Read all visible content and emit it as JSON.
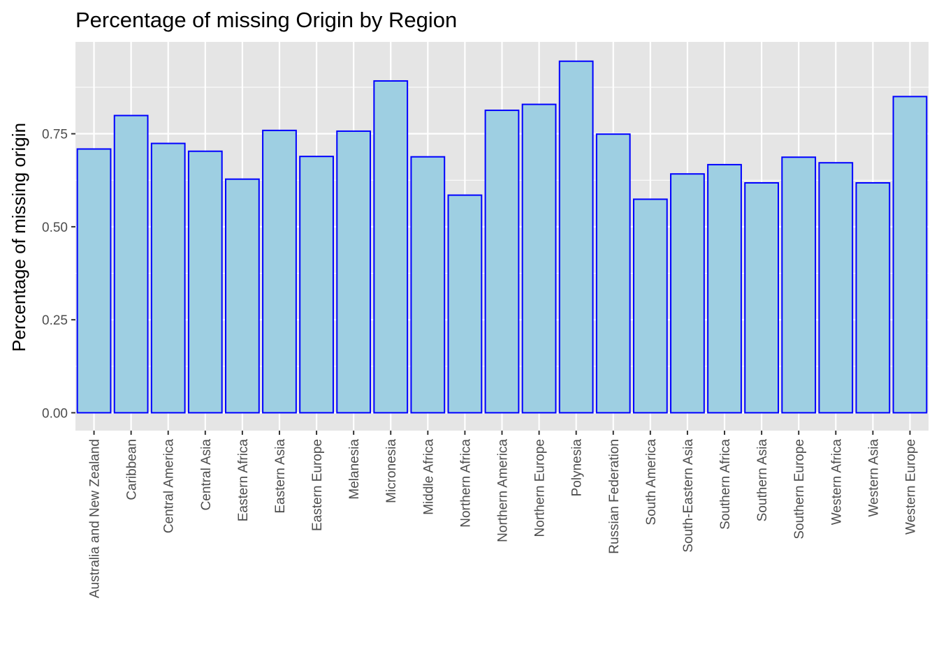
{
  "chart_data": {
    "type": "bar",
    "title": "Percentage of missing Origin by Region",
    "xlabel": "",
    "ylabel": "Percentage of missing origin",
    "categories": [
      "Australia and New Zealand",
      "Caribbean",
      "Central America",
      "Central Asia",
      "Eastern Africa",
      "Eastern Asia",
      "Eastern Europe",
      "Melanesia",
      "Micronesia",
      "Middle Africa",
      "Northern Africa",
      "Northern America",
      "Northern Europe",
      "Polynesia",
      "Russian Federation",
      "South America",
      "South-Eastern Asia",
      "Southern Africa",
      "Southern Asia",
      "Southern Europe",
      "Western Africa",
      "Western Asia",
      "Western Europe"
    ],
    "values": [
      0.709,
      0.799,
      0.724,
      0.703,
      0.628,
      0.759,
      0.689,
      0.757,
      0.892,
      0.688,
      0.585,
      0.813,
      0.829,
      0.945,
      0.749,
      0.574,
      0.642,
      0.667,
      0.618,
      0.687,
      0.672,
      0.618,
      0.85
    ],
    "yticks": [
      "0.00",
      "0.25",
      "0.50",
      "0.75"
    ],
    "ylim": [
      -0.048,
      0.997
    ],
    "grid": true,
    "colors": {
      "fill": "#9ecfe2",
      "stroke": "#0000ff",
      "panel": "#e5e5e5",
      "grid": "#ffffff"
    }
  }
}
